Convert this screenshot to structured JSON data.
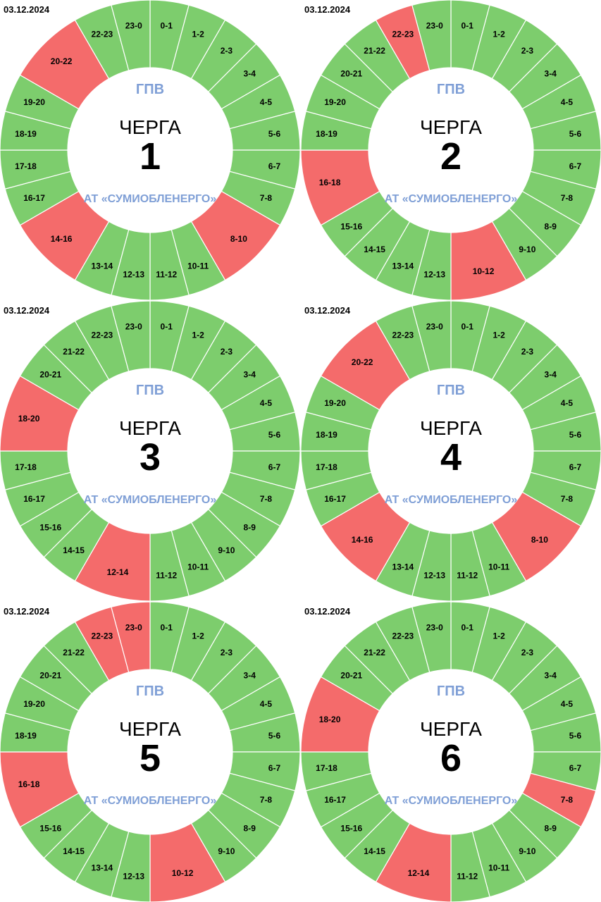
{
  "colors": {
    "on": "#7dcd6d",
    "off": "#f46b6b",
    "accent": "#7f9fd6"
  },
  "schedules": [
    {
      "date": "03.12.2024",
      "header": "ГПВ",
      "word": "ЧЕРГА",
      "number": "1",
      "footer": "АТ «СУМИОБЛЕНЕРГО»",
      "segments": [
        {
          "label": "0-1",
          "hours": 1,
          "status": "on"
        },
        {
          "label": "1-2",
          "hours": 1,
          "status": "on"
        },
        {
          "label": "2-3",
          "hours": 1,
          "status": "on"
        },
        {
          "label": "3-4",
          "hours": 1,
          "status": "on"
        },
        {
          "label": "4-5",
          "hours": 1,
          "status": "on"
        },
        {
          "label": "5-6",
          "hours": 1,
          "status": "on"
        },
        {
          "label": "6-7",
          "hours": 1,
          "status": "on"
        },
        {
          "label": "7-8",
          "hours": 1,
          "status": "on"
        },
        {
          "label": "8-10",
          "hours": 2,
          "status": "off"
        },
        {
          "label": "10-11",
          "hours": 1,
          "status": "on"
        },
        {
          "label": "11-12",
          "hours": 1,
          "status": "on"
        },
        {
          "label": "12-13",
          "hours": 1,
          "status": "on"
        },
        {
          "label": "13-14",
          "hours": 1,
          "status": "on"
        },
        {
          "label": "14-16",
          "hours": 2,
          "status": "off"
        },
        {
          "label": "16-17",
          "hours": 1,
          "status": "on"
        },
        {
          "label": "17-18",
          "hours": 1,
          "status": "on"
        },
        {
          "label": "18-19",
          "hours": 1,
          "status": "on"
        },
        {
          "label": "19-20",
          "hours": 1,
          "status": "on"
        },
        {
          "label": "20-22",
          "hours": 2,
          "status": "off"
        },
        {
          "label": "22-23",
          "hours": 1,
          "status": "on"
        },
        {
          "label": "23-0",
          "hours": 1,
          "status": "on"
        }
      ]
    },
    {
      "date": "03.12.2024",
      "header": "ГПВ",
      "word": "ЧЕРГА",
      "number": "2",
      "footer": "АТ «СУМИОБЛЕНЕРГО»",
      "segments": [
        {
          "label": "0-1",
          "hours": 1,
          "status": "on"
        },
        {
          "label": "1-2",
          "hours": 1,
          "status": "on"
        },
        {
          "label": "2-3",
          "hours": 1,
          "status": "on"
        },
        {
          "label": "3-4",
          "hours": 1,
          "status": "on"
        },
        {
          "label": "4-5",
          "hours": 1,
          "status": "on"
        },
        {
          "label": "5-6",
          "hours": 1,
          "status": "on"
        },
        {
          "label": "6-7",
          "hours": 1,
          "status": "on"
        },
        {
          "label": "7-8",
          "hours": 1,
          "status": "on"
        },
        {
          "label": "8-9",
          "hours": 1,
          "status": "on"
        },
        {
          "label": "9-10",
          "hours": 1,
          "status": "on"
        },
        {
          "label": "10-12",
          "hours": 2,
          "status": "off"
        },
        {
          "label": "12-13",
          "hours": 1,
          "status": "on"
        },
        {
          "label": "13-14",
          "hours": 1,
          "status": "on"
        },
        {
          "label": "14-15",
          "hours": 1,
          "status": "on"
        },
        {
          "label": "15-16",
          "hours": 1,
          "status": "on"
        },
        {
          "label": "16-18",
          "hours": 2,
          "status": "off"
        },
        {
          "label": "18-19",
          "hours": 1,
          "status": "on"
        },
        {
          "label": "19-20",
          "hours": 1,
          "status": "on"
        },
        {
          "label": "20-21",
          "hours": 1,
          "status": "on"
        },
        {
          "label": "21-22",
          "hours": 1,
          "status": "on"
        },
        {
          "label": "22-23",
          "hours": 1,
          "status": "off"
        },
        {
          "label": "23-0",
          "hours": 1,
          "status": "on"
        }
      ]
    },
    {
      "date": "03.12.2024",
      "header": "ГПВ",
      "word": "ЧЕРГА",
      "number": "3",
      "footer": "АТ «СУМИОБЛЕНЕРГО»",
      "segments": [
        {
          "label": "0-1",
          "hours": 1,
          "status": "on"
        },
        {
          "label": "1-2",
          "hours": 1,
          "status": "on"
        },
        {
          "label": "2-3",
          "hours": 1,
          "status": "on"
        },
        {
          "label": "3-4",
          "hours": 1,
          "status": "on"
        },
        {
          "label": "4-5",
          "hours": 1,
          "status": "on"
        },
        {
          "label": "5-6",
          "hours": 1,
          "status": "on"
        },
        {
          "label": "6-7",
          "hours": 1,
          "status": "on"
        },
        {
          "label": "7-8",
          "hours": 1,
          "status": "on"
        },
        {
          "label": "8-9",
          "hours": 1,
          "status": "on"
        },
        {
          "label": "9-10",
          "hours": 1,
          "status": "on"
        },
        {
          "label": "10-11",
          "hours": 1,
          "status": "on"
        },
        {
          "label": "11-12",
          "hours": 1,
          "status": "on"
        },
        {
          "label": "12-14",
          "hours": 2,
          "status": "off"
        },
        {
          "label": "14-15",
          "hours": 1,
          "status": "on"
        },
        {
          "label": "15-16",
          "hours": 1,
          "status": "on"
        },
        {
          "label": "16-17",
          "hours": 1,
          "status": "on"
        },
        {
          "label": "17-18",
          "hours": 1,
          "status": "on"
        },
        {
          "label": "18-20",
          "hours": 2,
          "status": "off"
        },
        {
          "label": "20-21",
          "hours": 1,
          "status": "on"
        },
        {
          "label": "21-22",
          "hours": 1,
          "status": "on"
        },
        {
          "label": "22-23",
          "hours": 1,
          "status": "on"
        },
        {
          "label": "23-0",
          "hours": 1,
          "status": "on"
        }
      ]
    },
    {
      "date": "03.12.2024",
      "header": "ГПВ",
      "word": "ЧЕРГА",
      "number": "4",
      "footer": "АТ «СУМИОБЛЕНЕРГО»",
      "segments": [
        {
          "label": "0-1",
          "hours": 1,
          "status": "on"
        },
        {
          "label": "1-2",
          "hours": 1,
          "status": "on"
        },
        {
          "label": "2-3",
          "hours": 1,
          "status": "on"
        },
        {
          "label": "3-4",
          "hours": 1,
          "status": "on"
        },
        {
          "label": "4-5",
          "hours": 1,
          "status": "on"
        },
        {
          "label": "5-6",
          "hours": 1,
          "status": "on"
        },
        {
          "label": "6-7",
          "hours": 1,
          "status": "on"
        },
        {
          "label": "7-8",
          "hours": 1,
          "status": "on"
        },
        {
          "label": "8-10",
          "hours": 2,
          "status": "off"
        },
        {
          "label": "10-11",
          "hours": 1,
          "status": "on"
        },
        {
          "label": "11-12",
          "hours": 1,
          "status": "on"
        },
        {
          "label": "12-13",
          "hours": 1,
          "status": "on"
        },
        {
          "label": "13-14",
          "hours": 1,
          "status": "on"
        },
        {
          "label": "14-16",
          "hours": 2,
          "status": "off"
        },
        {
          "label": "16-17",
          "hours": 1,
          "status": "on"
        },
        {
          "label": "17-18",
          "hours": 1,
          "status": "on"
        },
        {
          "label": "18-19",
          "hours": 1,
          "status": "on"
        },
        {
          "label": "19-20",
          "hours": 1,
          "status": "on"
        },
        {
          "label": "20-22",
          "hours": 2,
          "status": "off"
        },
        {
          "label": "22-23",
          "hours": 1,
          "status": "on"
        },
        {
          "label": "23-0",
          "hours": 1,
          "status": "on"
        }
      ]
    },
    {
      "date": "03.12.2024",
      "header": "ГПВ",
      "word": "ЧЕРГА",
      "number": "5",
      "footer": "АТ «СУМИОБЛЕНЕРГО»",
      "segments": [
        {
          "label": "0-1",
          "hours": 1,
          "status": "on"
        },
        {
          "label": "1-2",
          "hours": 1,
          "status": "on"
        },
        {
          "label": "2-3",
          "hours": 1,
          "status": "on"
        },
        {
          "label": "3-4",
          "hours": 1,
          "status": "on"
        },
        {
          "label": "4-5",
          "hours": 1,
          "status": "on"
        },
        {
          "label": "5-6",
          "hours": 1,
          "status": "on"
        },
        {
          "label": "6-7",
          "hours": 1,
          "status": "on"
        },
        {
          "label": "7-8",
          "hours": 1,
          "status": "on"
        },
        {
          "label": "8-9",
          "hours": 1,
          "status": "on"
        },
        {
          "label": "9-10",
          "hours": 1,
          "status": "on"
        },
        {
          "label": "10-12",
          "hours": 2,
          "status": "off"
        },
        {
          "label": "12-13",
          "hours": 1,
          "status": "on"
        },
        {
          "label": "13-14",
          "hours": 1,
          "status": "on"
        },
        {
          "label": "14-15",
          "hours": 1,
          "status": "on"
        },
        {
          "label": "15-16",
          "hours": 1,
          "status": "on"
        },
        {
          "label": "16-18",
          "hours": 2,
          "status": "off"
        },
        {
          "label": "18-19",
          "hours": 1,
          "status": "on"
        },
        {
          "label": "19-20",
          "hours": 1,
          "status": "on"
        },
        {
          "label": "20-21",
          "hours": 1,
          "status": "on"
        },
        {
          "label": "21-22",
          "hours": 1,
          "status": "on"
        },
        {
          "label": "22-23",
          "hours": 1,
          "status": "off"
        },
        {
          "label": "23-0",
          "hours": 1,
          "status": "off"
        }
      ]
    },
    {
      "date": "03.12.2024",
      "header": "ГПВ",
      "word": "ЧЕРГА",
      "number": "6",
      "footer": "АТ «СУМИОБЛЕНЕРГО»",
      "segments": [
        {
          "label": "0-1",
          "hours": 1,
          "status": "on"
        },
        {
          "label": "1-2",
          "hours": 1,
          "status": "on"
        },
        {
          "label": "2-3",
          "hours": 1,
          "status": "on"
        },
        {
          "label": "3-4",
          "hours": 1,
          "status": "on"
        },
        {
          "label": "4-5",
          "hours": 1,
          "status": "on"
        },
        {
          "label": "5-6",
          "hours": 1,
          "status": "on"
        },
        {
          "label": "6-7",
          "hours": 1,
          "status": "on"
        },
        {
          "label": "7-8",
          "hours": 1,
          "status": "off"
        },
        {
          "label": "8-9",
          "hours": 1,
          "status": "on"
        },
        {
          "label": "9-10",
          "hours": 1,
          "status": "on"
        },
        {
          "label": "10-11",
          "hours": 1,
          "status": "on"
        },
        {
          "label": "11-12",
          "hours": 1,
          "status": "on"
        },
        {
          "label": "12-14",
          "hours": 2,
          "status": "off"
        },
        {
          "label": "14-15",
          "hours": 1,
          "status": "on"
        },
        {
          "label": "15-16",
          "hours": 1,
          "status": "on"
        },
        {
          "label": "16-17",
          "hours": 1,
          "status": "on"
        },
        {
          "label": "17-18",
          "hours": 1,
          "status": "on"
        },
        {
          "label": "18-20",
          "hours": 2,
          "status": "off"
        },
        {
          "label": "20-21",
          "hours": 1,
          "status": "on"
        },
        {
          "label": "21-22",
          "hours": 1,
          "status": "on"
        },
        {
          "label": "22-23",
          "hours": 1,
          "status": "on"
        },
        {
          "label": "23-0",
          "hours": 1,
          "status": "on"
        }
      ]
    }
  ]
}
